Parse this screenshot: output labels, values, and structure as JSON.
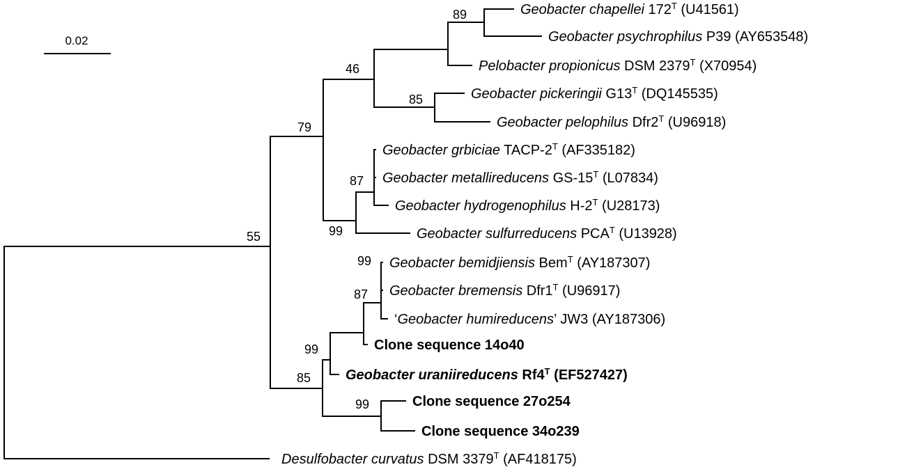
{
  "scale_bar": {
    "label": "0.02"
  },
  "taxa": [
    {
      "id": "t1",
      "italic": "Geobacter chapellei",
      "plain": " 172",
      "type_strain": true,
      "accession": " (U41561)",
      "quote": false,
      "bold": false
    },
    {
      "id": "t2",
      "italic": "Geobacter psychrophilus",
      "plain": " P39",
      "type_strain": false,
      "accession": " (AY653548)",
      "quote": false,
      "bold": false
    },
    {
      "id": "t3",
      "italic": "Pelobacter propionicus",
      "plain": " DSM 2379",
      "type_strain": true,
      "accession": " (X70954)",
      "quote": false,
      "bold": false
    },
    {
      "id": "t4",
      "italic": "Geobacter pickeringii",
      "plain": " G13",
      "type_strain": true,
      "accession": " (DQ145535)",
      "quote": false,
      "bold": false
    },
    {
      "id": "t5",
      "italic": "Geobacter pelophilus",
      "plain": " Dfr2",
      "type_strain": true,
      "accession": " (U96918)",
      "quote": false,
      "bold": false
    },
    {
      "id": "t6",
      "italic": "Geobacter grbiciae",
      "plain": " TACP-2",
      "type_strain": true,
      "accession": " (AF335182)",
      "quote": false,
      "bold": false
    },
    {
      "id": "t7",
      "italic": "Geobacter metallireducens",
      "plain": " GS-15",
      "type_strain": true,
      "accession": " (L07834)",
      "quote": false,
      "bold": false
    },
    {
      "id": "t8",
      "italic": "Geobacter hydrogenophilus",
      "plain": " H-2",
      "type_strain": true,
      "accession": " (U28173)",
      "quote": false,
      "bold": false
    },
    {
      "id": "t9",
      "italic": "Geobacter sulfurreducens",
      "plain": " PCA",
      "type_strain": true,
      "accession": " (U13928)",
      "quote": false,
      "bold": false
    },
    {
      "id": "t10",
      "italic": "Geobacter bemidjiensis",
      "plain": " Bem",
      "type_strain": true,
      "accession": " (AY187307)",
      "quote": false,
      "bold": false
    },
    {
      "id": "t11",
      "italic": "Geobacter bremensis",
      "plain": " Dfr1",
      "type_strain": true,
      "accession": " (U96917)",
      "quote": false,
      "bold": false
    },
    {
      "id": "t12",
      "italic": "Geobacter humireducens",
      "plain": " JW3",
      "type_strain": false,
      "accession": " (AY187306)",
      "quote": true,
      "bold": false
    },
    {
      "id": "t13",
      "italic": "",
      "plain": "Clone sequence 14o40",
      "type_strain": false,
      "accession": "",
      "quote": false,
      "bold": true
    },
    {
      "id": "t14",
      "italic": "Geobacter uraniireducens",
      "plain": " Rf4",
      "type_strain": true,
      "accession": " (EF527427)",
      "quote": false,
      "bold": true
    },
    {
      "id": "t15",
      "italic": "",
      "plain": "Clone sequence 27o254",
      "type_strain": false,
      "accession": "",
      "quote": false,
      "bold": true
    },
    {
      "id": "t16",
      "italic": "",
      "plain": "Clone sequence 34o239",
      "type_strain": false,
      "accession": "",
      "quote": false,
      "bold": true
    },
    {
      "id": "t17",
      "italic": "Desulfobacter curvatus",
      "plain": " DSM 3379",
      "type_strain": true,
      "accession": " (AF418175)",
      "quote": false,
      "bold": false
    }
  ],
  "type_marker": "T",
  "bootstrap": [
    {
      "id": "b89",
      "value": "89"
    },
    {
      "id": "b46",
      "value": "46"
    },
    {
      "id": "b85a",
      "value": "85"
    },
    {
      "id": "b79",
      "value": "79"
    },
    {
      "id": "b87a",
      "value": "87"
    },
    {
      "id": "b99a",
      "value": "99"
    },
    {
      "id": "b55",
      "value": "55"
    },
    {
      "id": "b99b",
      "value": "99"
    },
    {
      "id": "b87b",
      "value": "87"
    },
    {
      "id": "b99c",
      "value": "99"
    },
    {
      "id": "b85b",
      "value": "85"
    },
    {
      "id": "b99d",
      "value": "99"
    }
  ]
}
